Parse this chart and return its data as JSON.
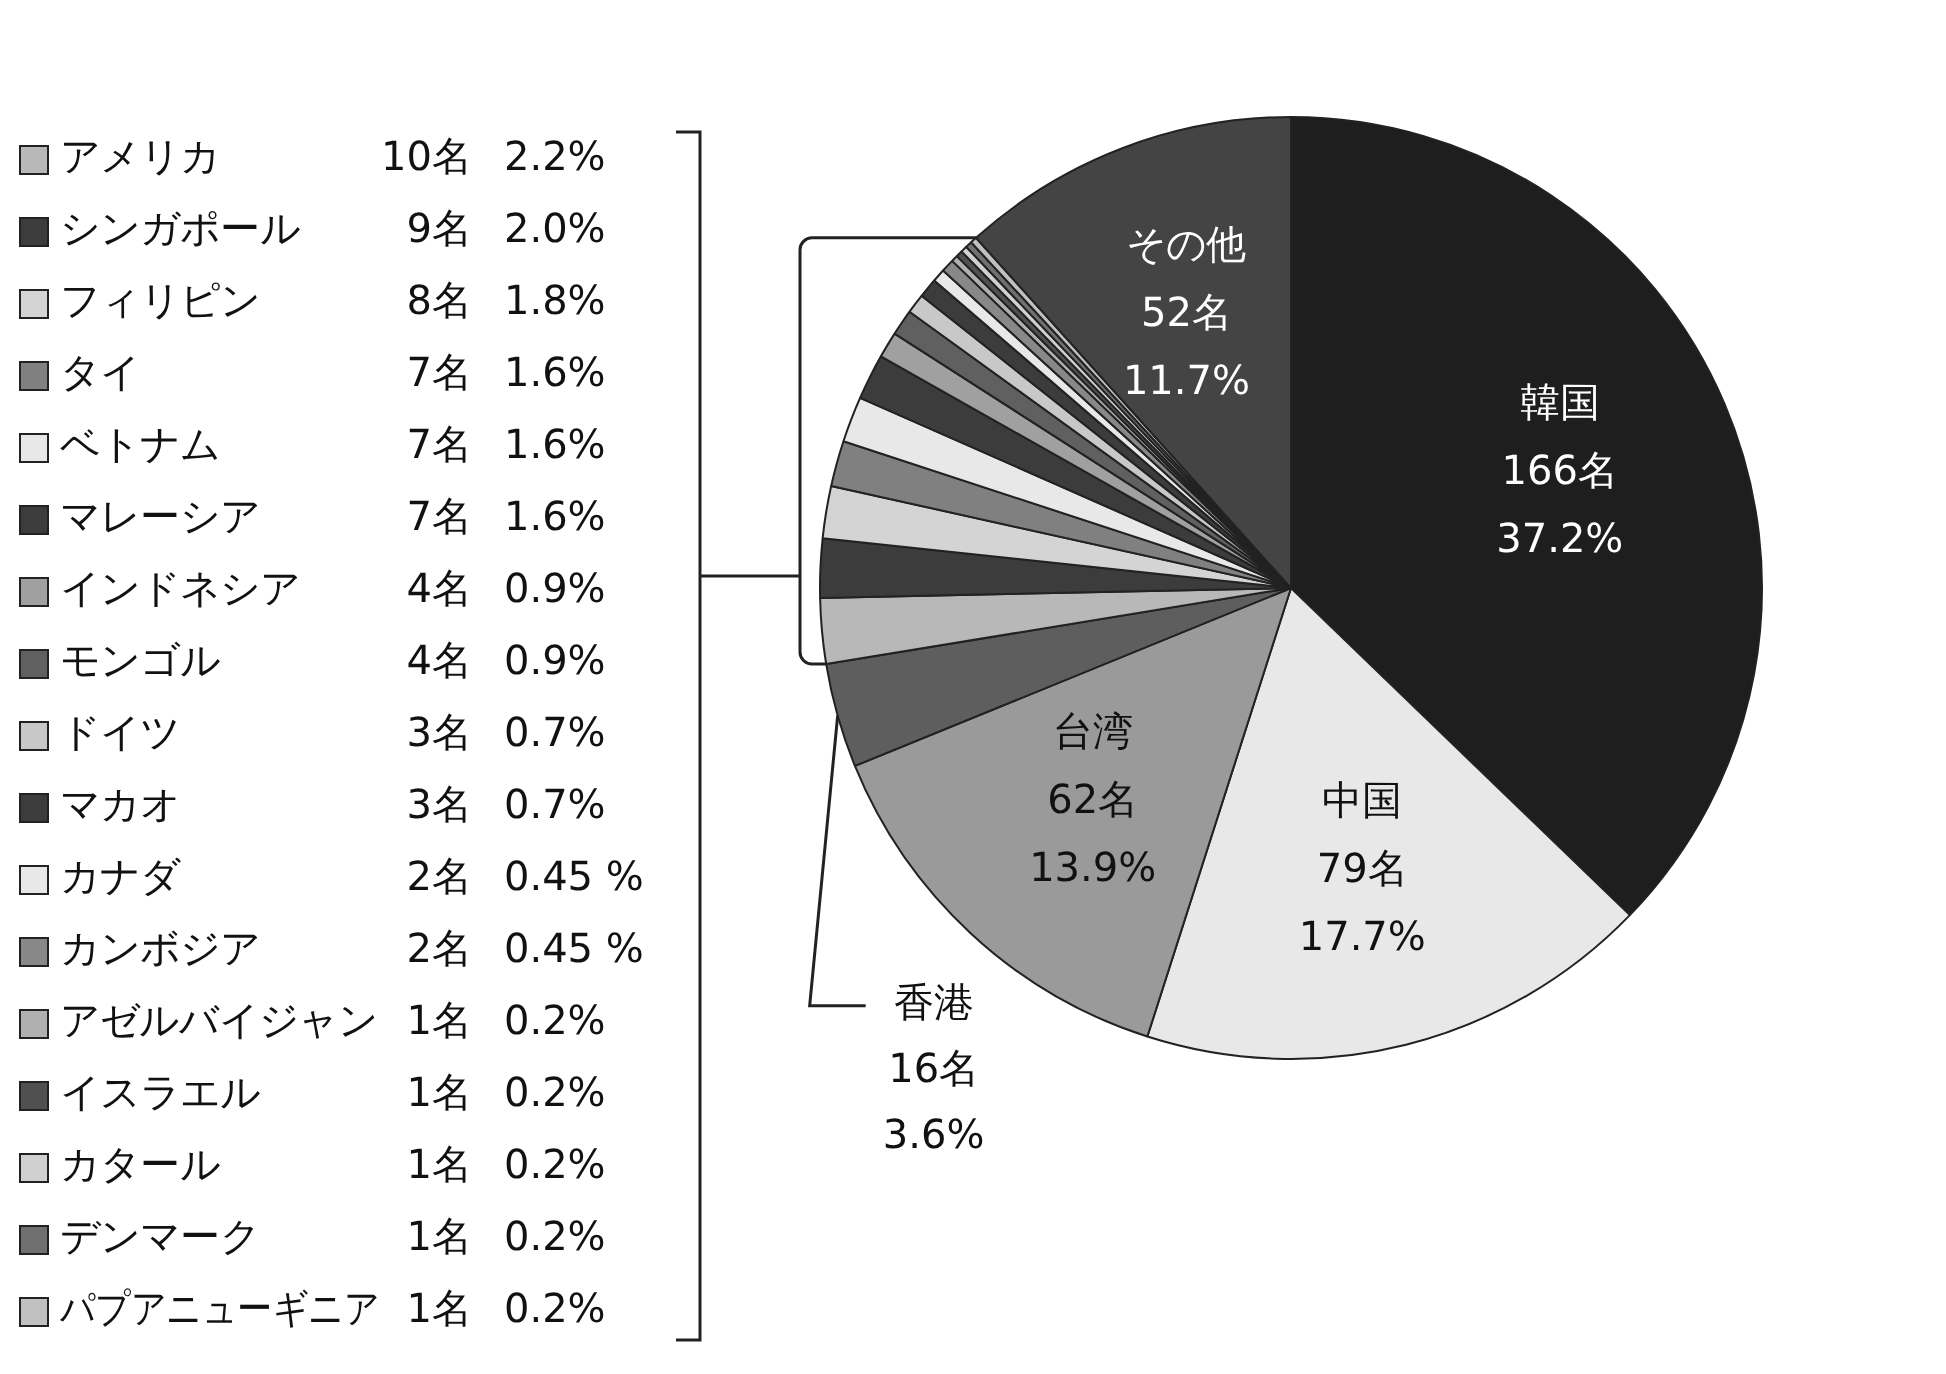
{
  "chart_data": {
    "type": "pie",
    "legend": "left",
    "categories": [
      "韓国",
      "中国",
      "台湾",
      "香港",
      "アメリカ",
      "シンガポール",
      "フィリピン",
      "タイ",
      "ベトナム",
      "マレーシア",
      "インドネシア",
      "モンゴル",
      "ドイツ",
      "マカオ",
      "カナダ",
      "カンボジア",
      "アゼルバイジャン",
      "イスラエル",
      "カタール",
      "デンマーク",
      "パプアニューギニア",
      "その他"
    ],
    "values": [
      166,
      79,
      62,
      16,
      10,
      9,
      8,
      7,
      7,
      7,
      4,
      4,
      3,
      3,
      2,
      2,
      1,
      1,
      1,
      1,
      1,
      52
    ],
    "colors": [
      "#1e1e1e",
      "#e8e8e8",
      "#9a9a9a",
      "#5e5e5e",
      "#b8b8b8",
      "#3c3c3c",
      "#d4d4d4",
      "#808080",
      "#e8e8e8",
      "#3c3c3c",
      "#a0a0a0",
      "#606060",
      "#c8c8c8",
      "#3c3c3c",
      "#e8e8e8",
      "#888888",
      "#b0b0b0",
      "#505050",
      "#d0d0d0",
      "#707070",
      "#c0c0c0",
      "#444444"
    ],
    "value_labels": [
      "166名\n37.2%",
      "79名\n17.7%",
      "62名\n13.9%",
      "16名\n3.6%",
      "10名\n2.2%",
      "9名\n2.0%",
      "8名\n1.8%",
      "7名\n1.6%",
      "7名\n1.6%",
      "7名\n1.6%",
      "4名\n0.9%",
      "4名\n0.9%",
      "3名\n0.7%",
      "3名\n0.7%",
      "2名\n0.45 %",
      "2名\n0.45 %",
      "1名\n0.2%",
      "1名\n0.2%",
      "1名\n0.2%",
      "1名\n0.2%",
      "1名\n0.2%",
      "52名\n11.7%"
    ]
  }
}
